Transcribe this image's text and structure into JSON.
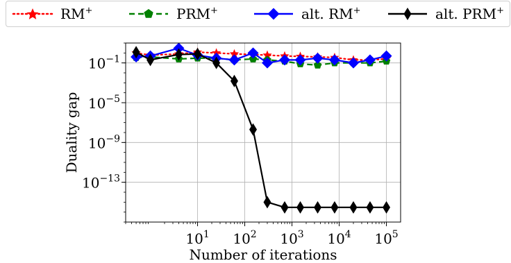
{
  "chart_data": {
    "type": "line",
    "title": "",
    "xlabel": "Number of iterations",
    "ylabel": "Duality gap",
    "xscale": "log",
    "yscale": "log",
    "xlim": [
      0.3,
      200000
    ],
    "ylim": [
      1e-17,
      10
    ],
    "grid": true,
    "legend_position": "top",
    "x_ticks": [
      {
        "value": 10,
        "base": "10",
        "exp": "1"
      },
      {
        "value": 100,
        "base": "10",
        "exp": "2"
      },
      {
        "value": 1000,
        "base": "10",
        "exp": "3"
      },
      {
        "value": 10000,
        "base": "10",
        "exp": "4"
      },
      {
        "value": 100000,
        "base": "10",
        "exp": "5"
      }
    ],
    "y_ticks": [
      {
        "value": 0.1,
        "base": "10",
        "exp": "−1"
      },
      {
        "value": 1e-05,
        "base": "10",
        "exp": "−5"
      },
      {
        "value": 1e-09,
        "base": "10",
        "exp": "−9"
      },
      {
        "value": 1e-13,
        "base": "10",
        "exp": "−13"
      }
    ],
    "x": [
      0.5,
      1.0,
      4.0,
      10,
      25,
      60,
      150,
      300,
      700,
      1500,
      3500,
      8000,
      20000,
      45000,
      100000
    ],
    "series": [
      {
        "name": "RM",
        "sup": "+",
        "color": "#ff0000",
        "linestyle": "dotted",
        "marker": "star",
        "values": [
          1.0,
          0.6,
          0.8,
          1.2,
          1.0,
          0.8,
          0.7,
          0.6,
          0.5,
          0.45,
          0.4,
          0.35,
          0.2,
          0.2,
          0.25
        ]
      },
      {
        "name": "PRM",
        "sup": "+",
        "color": "#008000",
        "linestyle": "dashed",
        "marker": "pentagon",
        "values": [
          0.35,
          0.4,
          0.25,
          0.3,
          0.3,
          0.2,
          0.25,
          0.2,
          0.15,
          0.08,
          0.06,
          0.1,
          0.1,
          0.1,
          0.15
        ]
      },
      {
        "name": "alt. RM",
        "sup": "+",
        "color": "#0000ff",
        "linestyle": "solid",
        "marker": "diamond",
        "values": [
          0.4,
          0.5,
          3.0,
          0.6,
          0.3,
          0.2,
          1.0,
          0.1,
          0.2,
          0.2,
          0.3,
          0.2,
          0.1,
          0.2,
          0.5
        ]
      },
      {
        "name": "alt. PRM",
        "sup": "+",
        "color": "#000000",
        "linestyle": "solid",
        "marker": "thin-diamond",
        "values": [
          1.2,
          0.2,
          0.7,
          0.8,
          0.1,
          0.0015,
          2e-08,
          1e-15,
          3e-16,
          3e-16,
          3e-16,
          3e-16,
          3e-16,
          3e-16,
          3e-16
        ]
      }
    ]
  }
}
